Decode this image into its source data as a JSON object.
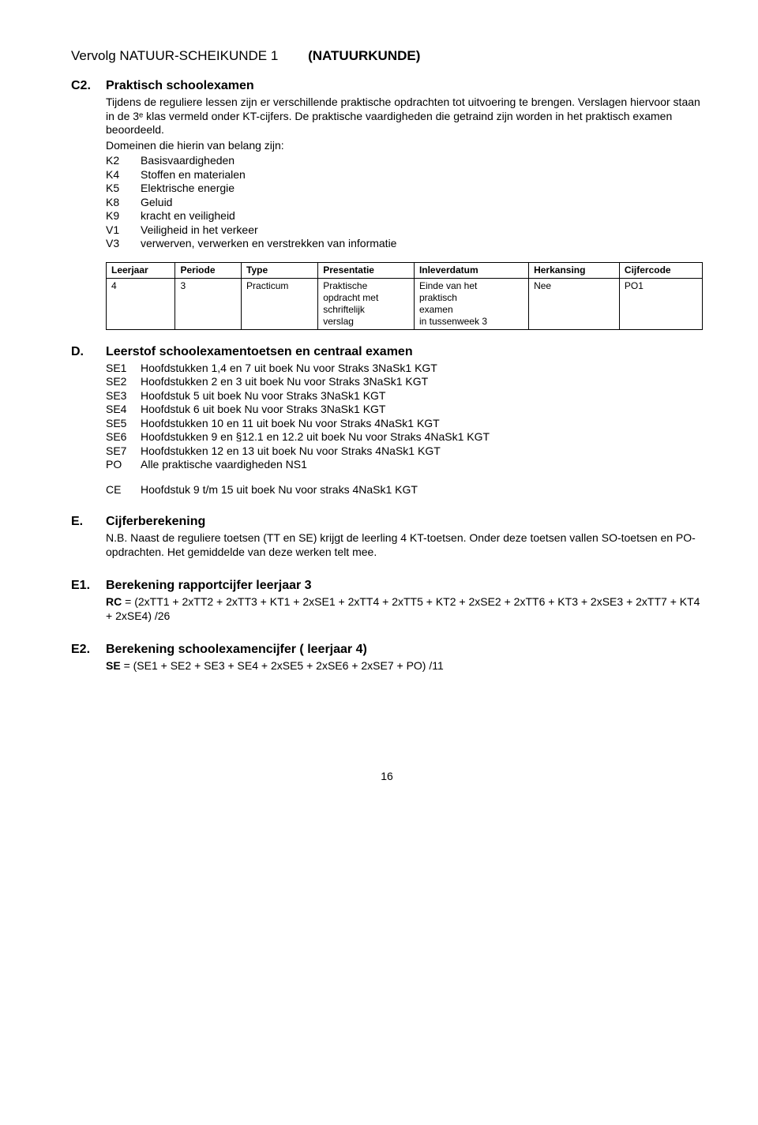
{
  "header": {
    "left": "Vervolg NATUUR-SCHEIKUNDE 1",
    "right": "(NATUURKUNDE)"
  },
  "c2": {
    "code": "C2.",
    "title": "Praktisch schoolexamen",
    "p1": "Tijdens de reguliere lessen zijn er verschillende praktische opdrachten tot uitvoering te brengen. Verslagen hiervoor staan in de 3ᵉ klas vermeld onder KT-cijfers. De praktische vaardigheden die getraind zijn worden in het praktisch examen beoordeeld.",
    "p2": "Domeinen die hierin van belang zijn:",
    "klines": [
      {
        "code": "K2",
        "desc": "Basisvaardigheden"
      },
      {
        "code": "K4",
        "desc": "Stoffen en materialen"
      },
      {
        "code": "K5",
        "desc": "Elektrische energie"
      },
      {
        "code": "K8",
        "desc": "Geluid"
      },
      {
        "code": "K9",
        "desc": "kracht en veiligheid"
      },
      {
        "code": "V1",
        "desc": "Veiligheid in het verkeer"
      },
      {
        "code": "V3",
        "desc": "verwerven, verwerken en verstrekken van informatie"
      }
    ]
  },
  "table": {
    "headers": [
      "Leerjaar",
      "Periode",
      "Type",
      "Presentatie",
      "Inleverdatum",
      "Herkansing",
      "Cijfercode"
    ],
    "row": {
      "leerjaar": "4",
      "periode": "3",
      "type": "Practicum",
      "presentatie": "Praktische\nopdracht met\nschriftelijk\nverslag",
      "inlever": "Einde van het\npraktisch\nexamen\nin tussenweek 3",
      "herkansing": "Nee",
      "cijfercode": "PO1"
    }
  },
  "d": {
    "code": "D.",
    "title": "Leerstof schoolexamentoetsen en centraal examen",
    "lines": [
      {
        "code": "SE1",
        "text": "Hoofdstukken 1,4 en 7 uit boek Nu voor Straks 3NaSk1 KGT"
      },
      {
        "code": "SE2",
        "text": "Hoofdstukken 2 en 3 uit boek Nu voor Straks 3NaSk1 KGT"
      },
      {
        "code": "SE3",
        "text": "Hoofdstuk 5 uit boek Nu voor Straks 3NaSk1 KGT"
      },
      {
        "code": "SE4",
        "text": "Hoofdstuk 6 uit boek Nu voor Straks 3NaSk1 KGT"
      },
      {
        "code": "SE5",
        "text": "Hoofdstukken 10 en 11 uit boek Nu voor Straks 4NaSk1 KGT"
      },
      {
        "code": "SE6",
        "text": "Hoofdstukken 9 en §12.1 en 12.2 uit boek Nu voor Straks 4NaSk1 KGT"
      },
      {
        "code": "SE7",
        "text": "Hoofdstukken 12 en 13 uit boek Nu voor Straks 4NaSk1 KGT"
      },
      {
        "code": "PO",
        "text": "Alle praktische vaardigheden NS1"
      }
    ],
    "ce": {
      "code": "CE",
      "text": "Hoofdstuk 9 t/m 15 uit boek Nu voor straks 4NaSk1 KGT"
    }
  },
  "e": {
    "code": "E.",
    "title": "Cijferberekening",
    "text": "N.B. Naast de reguliere toetsen (TT en SE) krijgt de leerling 4 KT-toetsen. Onder deze toetsen vallen SO-toetsen en PO-opdrachten. Het gemiddelde van deze werken telt mee."
  },
  "e1": {
    "code": "E1.",
    "title": "Berekening rapportcijfer leerjaar 3",
    "rc_label": "RC",
    "rc_rest": " = (2xTT1 + 2xTT2 + 2xTT3 + KT1 + 2xSE1 + 2xTT4 + 2xTT5 + KT2 + 2xSE2 + 2xTT6 + KT3 + 2xSE3 + 2xTT7 + KT4 + 2xSE4) /26"
  },
  "e2": {
    "code": "E2.",
    "title": "Berekening schoolexamencijfer ( leerjaar 4)",
    "se_label": "SE",
    "se_rest": " = (SE1 + SE2 + SE3 + SE4 + 2xSE5 + 2xSE6 + 2xSE7 + PO) /11"
  },
  "page_num": "16"
}
